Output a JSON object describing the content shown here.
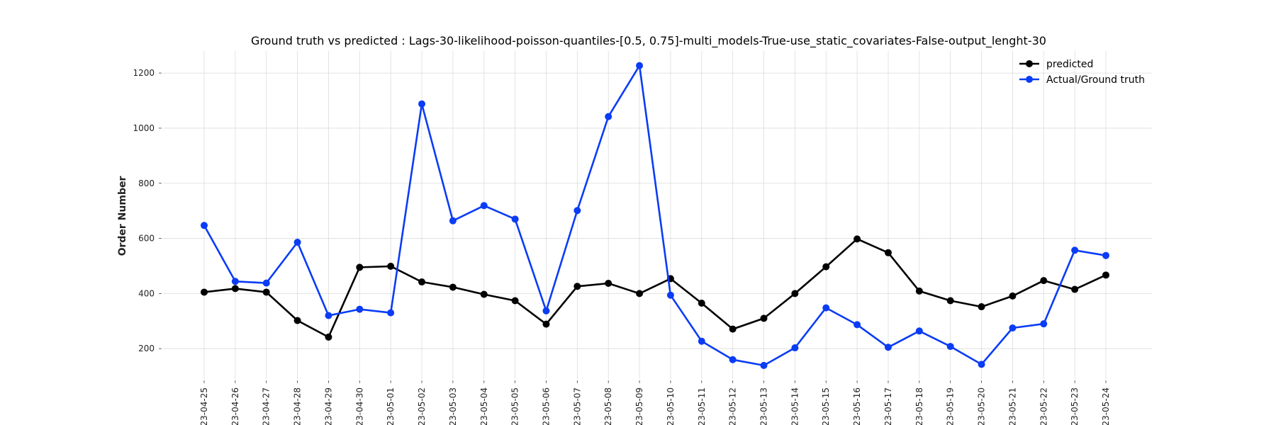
{
  "chart_data": {
    "type": "line",
    "title": "Ground truth vs predicted : Lags-30-likelihood-poisson-quantiles-[0.5, 0.75]-multi_models-True-use_static_covariates-False-output_lenght-30",
    "xlabel": "",
    "ylabel": "Order Number",
    "ylim": [
      90,
      1280
    ],
    "yticks": [
      200,
      400,
      600,
      800,
      1000,
      1200
    ],
    "grid": true,
    "legend_position": "top-right",
    "x": [
      "2023-04-25",
      "2023-04-26",
      "2023-04-27",
      "2023-04-28",
      "2023-04-29",
      "2023-04-30",
      "2023-05-01",
      "2023-05-02",
      "2023-05-03",
      "2023-05-04",
      "2023-05-05",
      "2023-05-06",
      "2023-05-07",
      "2023-05-08",
      "2023-05-09",
      "2023-05-10",
      "2023-05-11",
      "2023-05-12",
      "2023-05-13",
      "2023-05-14",
      "2023-05-15",
      "2023-05-16",
      "2023-05-17",
      "2023-05-18",
      "2023-05-19",
      "2023-05-20",
      "2023-05-21",
      "2023-05-22",
      "2023-05-23",
      "2023-05-24"
    ],
    "series": [
      {
        "name": "predicted",
        "color": "#000000",
        "values": [
          405,
          418,
          405,
          302,
          242,
          495,
          499,
          442,
          423,
          397,
          374,
          289,
          426,
          437,
          400,
          454,
          365,
          271,
          310,
          400,
          497,
          598,
          548,
          409,
          374,
          352,
          391,
          447,
          415,
          467
        ]
      },
      {
        "name": "Actual/Ground truth",
        "color": "#0a3cf5",
        "values": [
          647,
          444,
          438,
          586,
          320,
          343,
          330,
          1088,
          664,
          719,
          670,
          337,
          701,
          1042,
          1227,
          394,
          227,
          160,
          139,
          203,
          348,
          287,
          205,
          264,
          208,
          143,
          275,
          290,
          557,
          538
        ]
      }
    ]
  }
}
